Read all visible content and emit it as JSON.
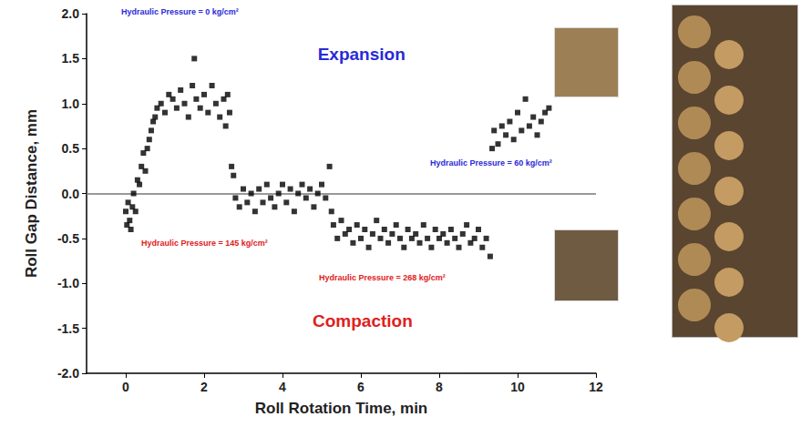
{
  "chart_data": {
    "type": "scatter",
    "x_label": "Roll Rotation Time, min",
    "y_label": "Roll Gap Distance, mm",
    "annotations": [
      {
        "text": "Hydraulic Pressure = 0 kg/cm²",
        "color": "#2a2ad8"
      },
      {
        "text": "Expansion",
        "color": "#2a2ad8"
      },
      {
        "text": "Hydraulic Pressure = 145 kg/cm²",
        "color": "#e02020"
      },
      {
        "text": "Hydraulic Pressure = 268 kg/cm²",
        "color": "#e02020"
      },
      {
        "text": "Hydraulic Pressure = 60 kg/cm²",
        "color": "#2a2ad8"
      },
      {
        "text": "Compaction",
        "color": "#e02020"
      }
    ],
    "baseline": 0,
    "color": "#000000",
    "marker": "square",
    "grid": false,
    "xlim": [
      -1,
      12
    ],
    "xticks": [
      0,
      2,
      4,
      6,
      8,
      10,
      12
    ],
    "ylim": [
      -2,
      2
    ],
    "yticks": [
      {
        "value": -2,
        "label": "-2.0"
      },
      -1.5,
      {
        "value": -1,
        "label": "-1.0"
      },
      -0.5,
      {
        "value": 0,
        "label": "0.0"
      },
      0.5,
      {
        "value": 1,
        "label": "1.0"
      },
      1.5,
      {
        "value": 2,
        "label": "2.0"
      }
    ],
    "x": [
      0.0,
      0.03,
      0.06,
      0.1,
      0.13,
      0.17,
      0.2,
      0.25,
      0.3,
      0.35,
      0.4,
      0.45,
      0.5,
      0.55,
      0.6,
      0.65,
      0.7,
      0.75,
      0.8,
      0.9,
      1.0,
      1.1,
      1.2,
      1.3,
      1.4,
      1.5,
      1.6,
      1.7,
      1.75,
      1.8,
      1.9,
      2.0,
      2.1,
      2.2,
      2.3,
      2.4,
      2.5,
      2.55,
      2.6,
      2.65,
      2.7,
      2.75,
      2.8,
      2.9,
      3.0,
      3.1,
      3.2,
      3.3,
      3.4,
      3.5,
      3.6,
      3.7,
      3.8,
      3.9,
      4.0,
      4.1,
      4.2,
      4.3,
      4.4,
      4.5,
      4.6,
      4.7,
      4.8,
      4.9,
      5.0,
      5.1,
      5.2,
      5.25,
      5.3,
      5.4,
      5.5,
      5.6,
      5.7,
      5.8,
      5.9,
      6.0,
      6.1,
      6.2,
      6.3,
      6.4,
      6.5,
      6.6,
      6.7,
      6.8,
      6.9,
      7.0,
      7.1,
      7.2,
      7.3,
      7.4,
      7.5,
      7.6,
      7.7,
      7.8,
      7.9,
      8.0,
      8.1,
      8.2,
      8.3,
      8.4,
      8.5,
      8.6,
      8.7,
      8.8,
      8.9,
      9.0,
      9.1,
      9.2,
      9.3,
      9.35,
      9.4,
      9.5,
      9.6,
      9.7,
      9.8,
      9.9,
      10.0,
      10.1,
      10.2,
      10.3,
      10.4,
      10.5,
      10.6,
      10.7,
      10.8
    ],
    "values": [
      -0.2,
      -0.35,
      -0.1,
      -0.3,
      -0.4,
      -0.15,
      0.0,
      -0.2,
      0.15,
      0.1,
      0.3,
      0.45,
      0.25,
      0.5,
      0.6,
      0.7,
      0.8,
      0.85,
      0.95,
      1.0,
      0.9,
      1.1,
      1.05,
      0.95,
      1.15,
      1.0,
      0.85,
      1.2,
      1.5,
      1.05,
      0.95,
      1.1,
      0.9,
      1.2,
      1.0,
      0.85,
      1.05,
      0.75,
      1.1,
      0.9,
      0.3,
      0.2,
      -0.05,
      -0.15,
      0.05,
      -0.1,
      0.0,
      -0.2,
      0.05,
      -0.1,
      0.1,
      -0.05,
      -0.15,
      0.0,
      0.1,
      -0.1,
      0.05,
      -0.2,
      0.0,
      0.1,
      -0.05,
      0.05,
      -0.15,
      0.0,
      0.1,
      -0.05,
      0.3,
      -0.2,
      -0.35,
      -0.5,
      -0.3,
      -0.45,
      -0.4,
      -0.55,
      -0.35,
      -0.5,
      -0.4,
      -0.6,
      -0.45,
      -0.3,
      -0.5,
      -0.4,
      -0.55,
      -0.45,
      -0.35,
      -0.5,
      -0.6,
      -0.4,
      -0.5,
      -0.45,
      -0.55,
      -0.35,
      -0.5,
      -0.6,
      -0.4,
      -0.5,
      -0.45,
      -0.55,
      -0.4,
      -0.5,
      -0.6,
      -0.45,
      -0.35,
      -0.55,
      -0.5,
      -0.4,
      -0.6,
      -0.5,
      -0.7,
      0.5,
      0.7,
      0.55,
      0.75,
      0.65,
      0.8,
      0.6,
      0.9,
      0.7,
      1.05,
      0.75,
      0.85,
      0.65,
      0.8,
      0.9,
      0.95
    ]
  }
}
